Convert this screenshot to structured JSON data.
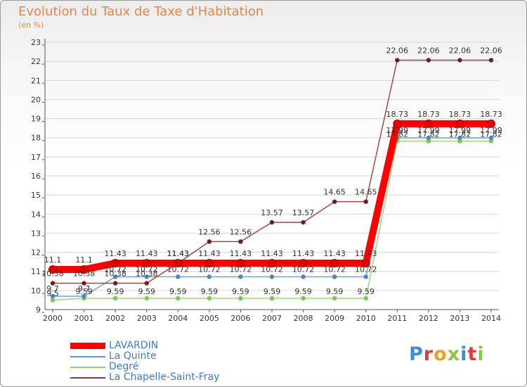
{
  "header": {
    "title": "Evolution du Taux de Taxe d'Habitation",
    "subtitle": "(en %)"
  },
  "brand": {
    "logo_text": "Proxiti"
  },
  "colors": {
    "title": "#e98548",
    "legend_text": "#3a7bd5",
    "grid": "#d5d5d5",
    "axis_tick": "#e02020"
  },
  "chart_data": {
    "type": "line",
    "title": "Evolution du Taux de Taxe d'Habitation",
    "subtitle": "(en %)",
    "x": [
      "2000",
      "2001",
      "2002",
      "2003",
      "2004",
      "2005",
      "2006",
      "2007",
      "2008",
      "2009",
      "2010",
      "2011",
      "2012",
      "2013",
      "2014"
    ],
    "ylim": [
      9,
      23
    ],
    "yticks": [
      9,
      10,
      11,
      12,
      13,
      14,
      15,
      16,
      17,
      18,
      19,
      20,
      21,
      22,
      23
    ],
    "grid": true,
    "legend_position": "bottom-left",
    "series": [
      {
        "name": "LAVARDIN",
        "color": "#ff0000",
        "values": [
          11.1,
          11.1,
          11.43,
          11.43,
          11.43,
          11.43,
          11.43,
          11.43,
          11.43,
          11.43,
          11.43,
          18.73,
          18.73,
          18.73,
          18.73
        ],
        "labels": [
          "11.1",
          "11.1",
          "11.43",
          "11.43",
          "11.43",
          "11.43",
          "11.43",
          "11.43",
          "11.43",
          "11.43",
          "11.43",
          "18.73",
          "18.73",
          "18.73",
          "18.73"
        ]
      },
      {
        "name": "La Quinte",
        "color": "#5b9bd5",
        "values": [
          9.7,
          9.7,
          10.72,
          10.72,
          10.72,
          10.72,
          10.72,
          10.72,
          10.72,
          10.72,
          10.72,
          17.99,
          17.99,
          17.99,
          17.99
        ],
        "labels": [
          "9.7",
          "9.7",
          "10.72",
          "10.72",
          "10.72",
          "10.72",
          "10.72",
          "10.72",
          "10.72",
          "10.72",
          "10.72",
          "17.99",
          "17.99",
          "17.99",
          "17.99"
        ]
      },
      {
        "name": "Degré",
        "color": "#8fd16a",
        "values": [
          9.5,
          9.59,
          9.59,
          9.59,
          9.59,
          9.59,
          9.59,
          9.59,
          9.59,
          9.59,
          9.59,
          17.82,
          17.82,
          17.82,
          17.82
        ],
        "labels": [
          "9.5",
          "9.59",
          "9.59",
          "9.59",
          "9.59",
          "9.59",
          "9.59",
          "9.59",
          "9.59",
          "9.59",
          "9.59",
          "17.82",
          "17.82",
          "17.82",
          "17.82"
        ]
      },
      {
        "name": "La Chapelle-Saint-Fray",
        "color": "#8b3a3a",
        "values": [
          10.38,
          10.38,
          10.38,
          10.38,
          11.43,
          12.56,
          12.56,
          13.57,
          13.57,
          14.65,
          14.65,
          22.06,
          22.06,
          22.06,
          22.06
        ],
        "labels": [
          "10.38",
          "10.38",
          "10.38",
          "10.38",
          "11.43",
          "12.56",
          "12.56",
          "13.57",
          "13.57",
          "14.65",
          "14.65",
          "22.06",
          "22.06",
          "22.06",
          "22.06"
        ]
      }
    ]
  }
}
